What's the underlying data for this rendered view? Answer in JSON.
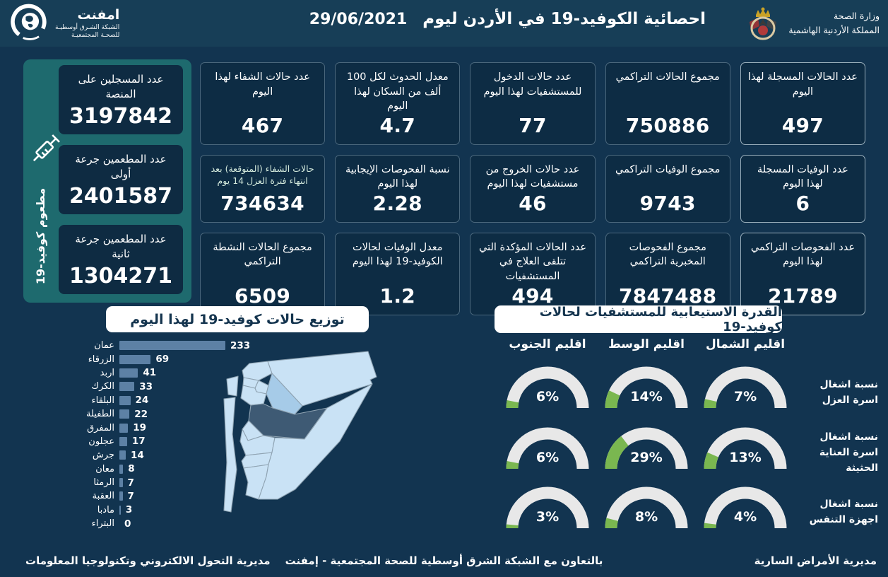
{
  "header": {
    "title": "احصائية الكوفيد-19 في الأردن ليوم",
    "date": "29/06/2021",
    "ministry_name": "وزارة الصحة",
    "ministry_country": "المملكة الأردنية الهاشمية",
    "emphnet_name": "امفنت",
    "emphnet_line1": "الشبكة الشـرق أوسطيـة",
    "emphnet_line2": "للصحـة المجتمعيـة"
  },
  "vaccination_panel": {
    "vertical_label": "مطعوم كوفيد-19",
    "cards": [
      {
        "label": "عدد المسجلين على المنصة",
        "value": "3197842"
      },
      {
        "label": "عدد المطعمين جرعة أولى",
        "value": "2401587"
      },
      {
        "label": "عدد المطعمين جرعة ثانية",
        "value": "1304271"
      }
    ]
  },
  "stat_cards": [
    {
      "label": "عدد الحالات المسجلة لهذا اليوم",
      "value": "497"
    },
    {
      "label": "مجموع الحالات التراكمي",
      "value": "750886"
    },
    {
      "label": "عدد حالات الدخول للمستشفيات لهذا اليوم",
      "value": "77"
    },
    {
      "label": "معدل الحدوث لكل 100 ألف من السكان لهذا اليوم",
      "value": "4.7"
    },
    {
      "label": "عدد حالات الشفاء لهذا اليوم",
      "value": "467"
    },
    {
      "label": "عدد الوفيات المسجلة لهذا اليوم",
      "value": "6"
    },
    {
      "label": "مجموع الوفيات التراكمي",
      "value": "9743"
    },
    {
      "label": "عدد حالات الخروج من مستشفيات لهذا اليوم",
      "value": "46"
    },
    {
      "label": "نسبة الفحوصات الإيجابية لهذا اليوم",
      "value": "2.28"
    },
    {
      "label": "حالات الشفاء (المتوقعة) بعد انتهاء فترة العزل 14 يوم",
      "value": "734634",
      "light_label": true
    },
    {
      "label": "عدد الفحوصات التراكمي لهذا اليوم",
      "value": "21789"
    },
    {
      "label": "مجموع الفحوصات المخبرية التراكمي",
      "value": "7847488"
    },
    {
      "label": "عدد الحالات المؤكدة التي تتلقى العلاج في المستشفيات",
      "value": "494"
    },
    {
      "label": "معدل الوفيات لحالات الكوفيد-19 لهذا اليوم",
      "value": "1.2"
    },
    {
      "label": "مجموع الحالات النشطة التراكمي",
      "value": "6509"
    }
  ],
  "chart_data": [
    {
      "type": "bar",
      "title": "توزيع حالات كوفيد-19 لهذا اليوم",
      "orientation": "horizontal",
      "categories": [
        "عمان",
        "الزرقاء",
        "اربد",
        "الكرك",
        "البلقاء",
        "الطفيلة",
        "المفرق",
        "عجلون",
        "جرش",
        "معان",
        "الرمثا",
        "العقبة",
        "مادبا",
        "البتراء"
      ],
      "values": [
        233,
        69,
        41,
        33,
        24,
        22,
        19,
        17,
        14,
        8,
        7,
        7,
        3,
        0
      ],
      "xlim": [
        0,
        233
      ],
      "bar_color": "#5D81A5",
      "grid": false,
      "value_labels": "end-of-bar"
    },
    {
      "type": "gauge-grid",
      "title": "القدرة الاستيعابية للمستشفيات لحالات كوفيد-19",
      "columns": [
        "اقليم الشمال",
        "اقليم الوسط",
        "اقليم الجنوب"
      ],
      "rows": [
        {
          "label": "نسبة اشغال اسرة العزل",
          "values": [
            7,
            14,
            6
          ]
        },
        {
          "label": "نسبة اشغال اسرة العناية الحثيثة",
          "values": [
            13,
            29,
            6
          ]
        },
        {
          "label": "نسبة اشغال اجهزة التنفس",
          "values": [
            4,
            8,
            3
          ]
        }
      ],
      "unit": "%",
      "range": [
        0,
        100
      ],
      "colors": {
        "track": "#E8E8E8",
        "fill": "#7AB750"
      }
    },
    {
      "type": "map",
      "region": "Jordan governorates",
      "highlighted": [
        {
          "name": "عمان",
          "tone": "dark"
        },
        {
          "name": "الزرقاء",
          "tone": "medium"
        }
      ]
    }
  ],
  "footer": {
    "right": "مديرية الأمراض السارية",
    "center": "بالتعاون مع الشبكة الشرق أوسطية للصحة المجتمعية - إمفنت",
    "left": "مديرية التحول الالكتروني وتكنولوجيا المعلومات"
  },
  "colors": {
    "background": "#123450",
    "header": "#173E57",
    "card": "#0D2C44",
    "sidebar": "#1E6A6E",
    "bar": "#5D81A5",
    "gauge_track": "#E8E8E8",
    "gauge_fill": "#7AB750",
    "map_light": "#C9E2F5",
    "map_medium": "#A6CBE8",
    "map_dark": "#3E5A74",
    "pill_text": "#14344E"
  }
}
